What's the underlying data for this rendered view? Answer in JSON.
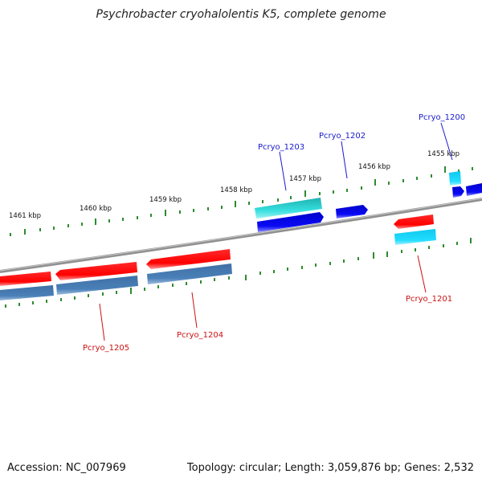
{
  "title": "Psychrobacter cryohalolentis K5, complete genome",
  "footer": {
    "accession": "Accession: NC_007969",
    "topology": "Topology: circular; Length: 3,059,876 bp; Genes: 2,532"
  },
  "kbp_labels": [
    "1461 kbp",
    "1460 kbp",
    "1459 kbp",
    "1458 kbp",
    "1457 kbp",
    "1456 kbp",
    "1455 kbp"
  ],
  "gene_labels": [
    {
      "text": "Pcryo_1205",
      "strand": "minus"
    },
    {
      "text": "Pcryo_1204",
      "strand": "minus"
    },
    {
      "text": "Pcryo_1203",
      "strand": "plus"
    },
    {
      "text": "Pcryo_1202",
      "strand": "plus"
    },
    {
      "text": "Pcryo_1201",
      "strand": "minus"
    },
    {
      "text": "Pcryo_1200",
      "strand": "plus"
    }
  ],
  "colors": {
    "backbone": "#8a8a8a",
    "tick": "#2e8b2e",
    "plus_label": "#1a1acc",
    "minus_label": "#cc1111",
    "red_gene": "#ff0a0a",
    "steelblue_gene": "#4a7fb5",
    "teal_gene": "#22cccc",
    "blue_gene": "#0a0aee",
    "cyan_gene": "#1ad8f0"
  }
}
